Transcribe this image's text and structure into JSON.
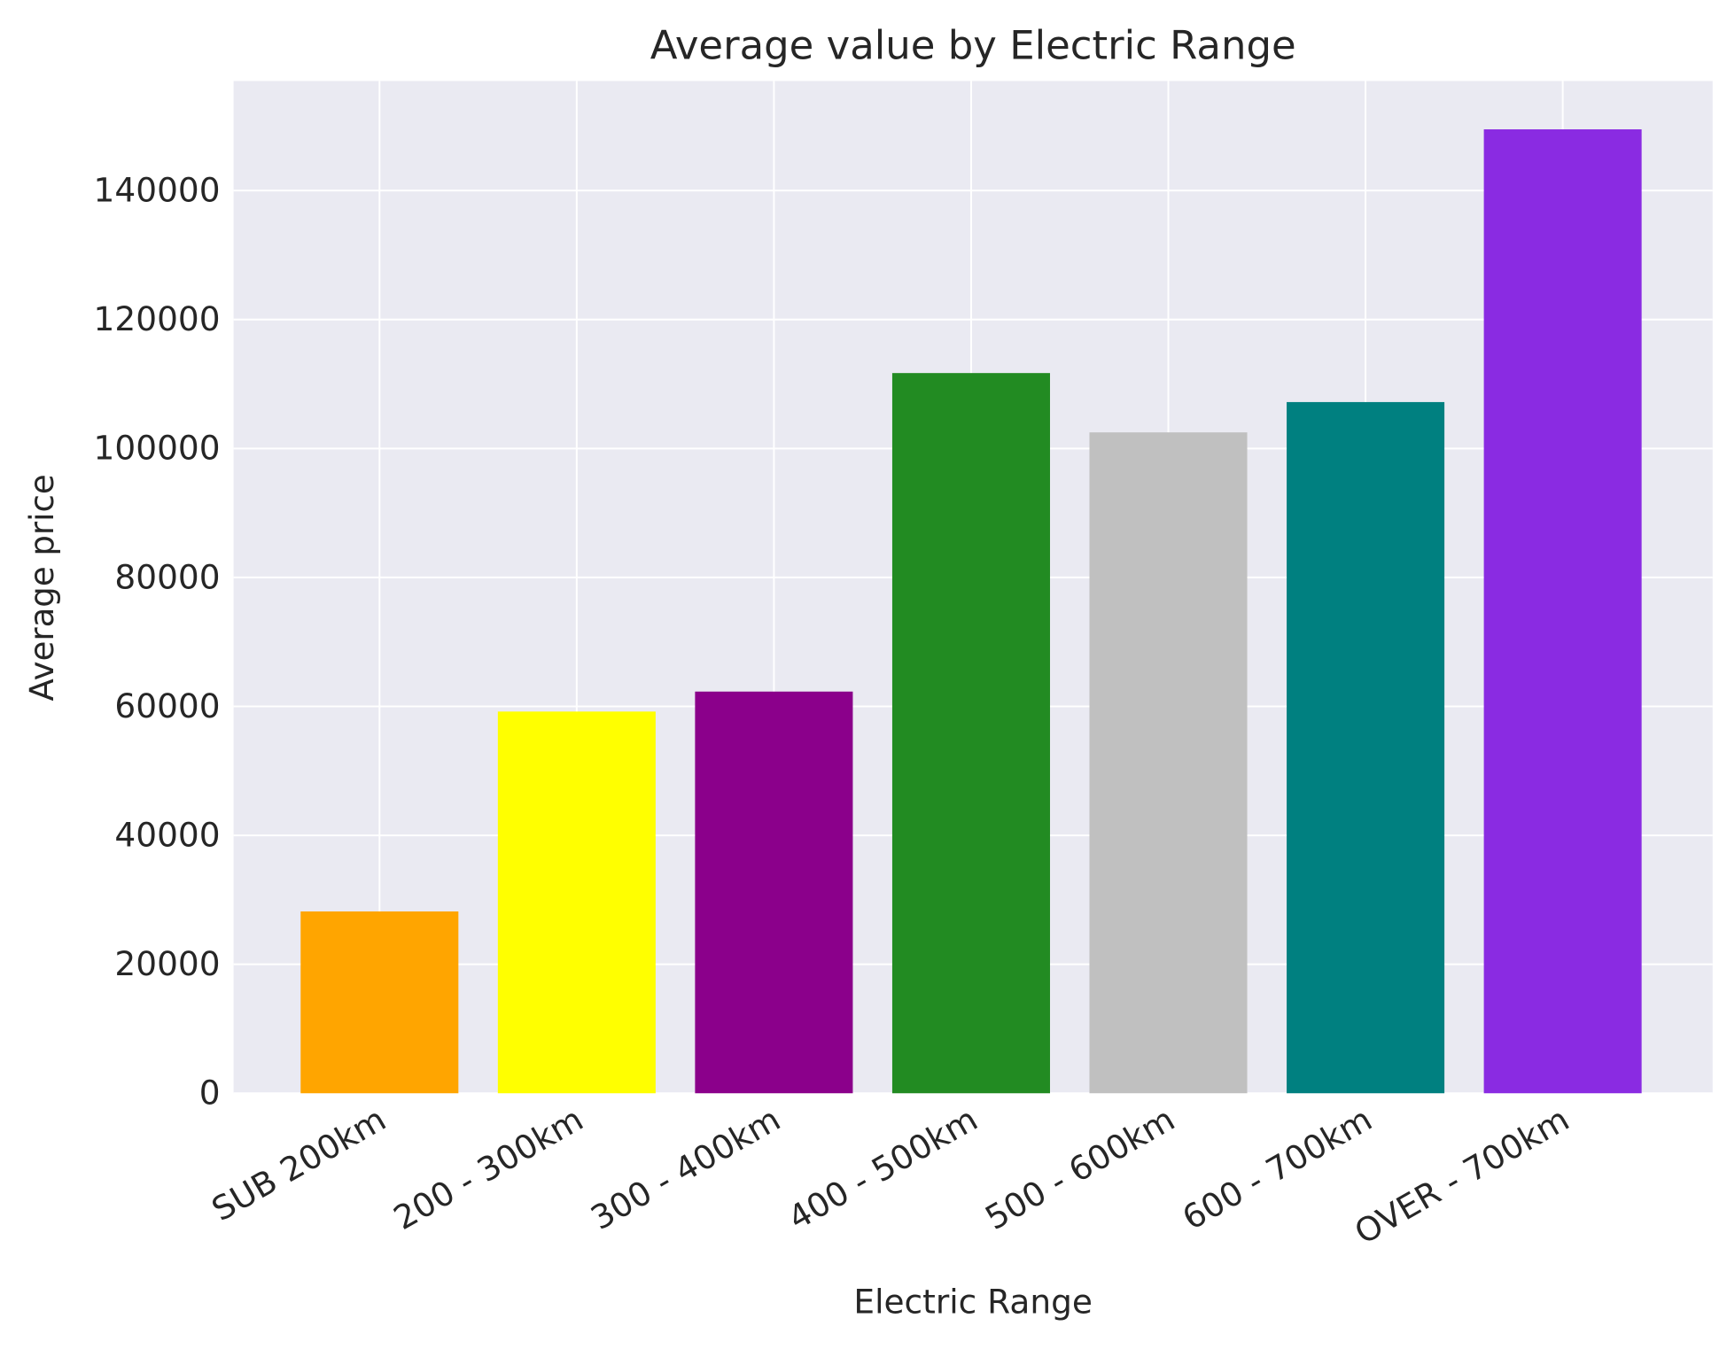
{
  "chart_data": {
    "type": "bar",
    "title": "Average value by Electric Range",
    "xlabel": "Electric Range",
    "ylabel": "Average price",
    "categories": [
      "SUB 200km",
      "200 - 300km",
      "300 - 400km",
      "400 - 500km",
      "500 - 600km",
      "600 - 700km",
      "OVER - 700km"
    ],
    "values": [
      28200,
      59200,
      62300,
      111700,
      102500,
      107200,
      149500
    ],
    "colors": [
      "#ffa500",
      "#ffff00",
      "#8b008b",
      "#228b22",
      "#c0c0c0",
      "#008080",
      "#8a2be2"
    ],
    "ylim": [
      0,
      157000
    ],
    "yticks": [
      0,
      20000,
      40000,
      60000,
      80000,
      100000,
      120000,
      140000
    ],
    "ytick_labels": [
      "0",
      "20000",
      "40000",
      "60000",
      "80000",
      "100000",
      "120000",
      "140000"
    ],
    "grid": true,
    "background": "#eaeaf2",
    "legend": "none"
  }
}
